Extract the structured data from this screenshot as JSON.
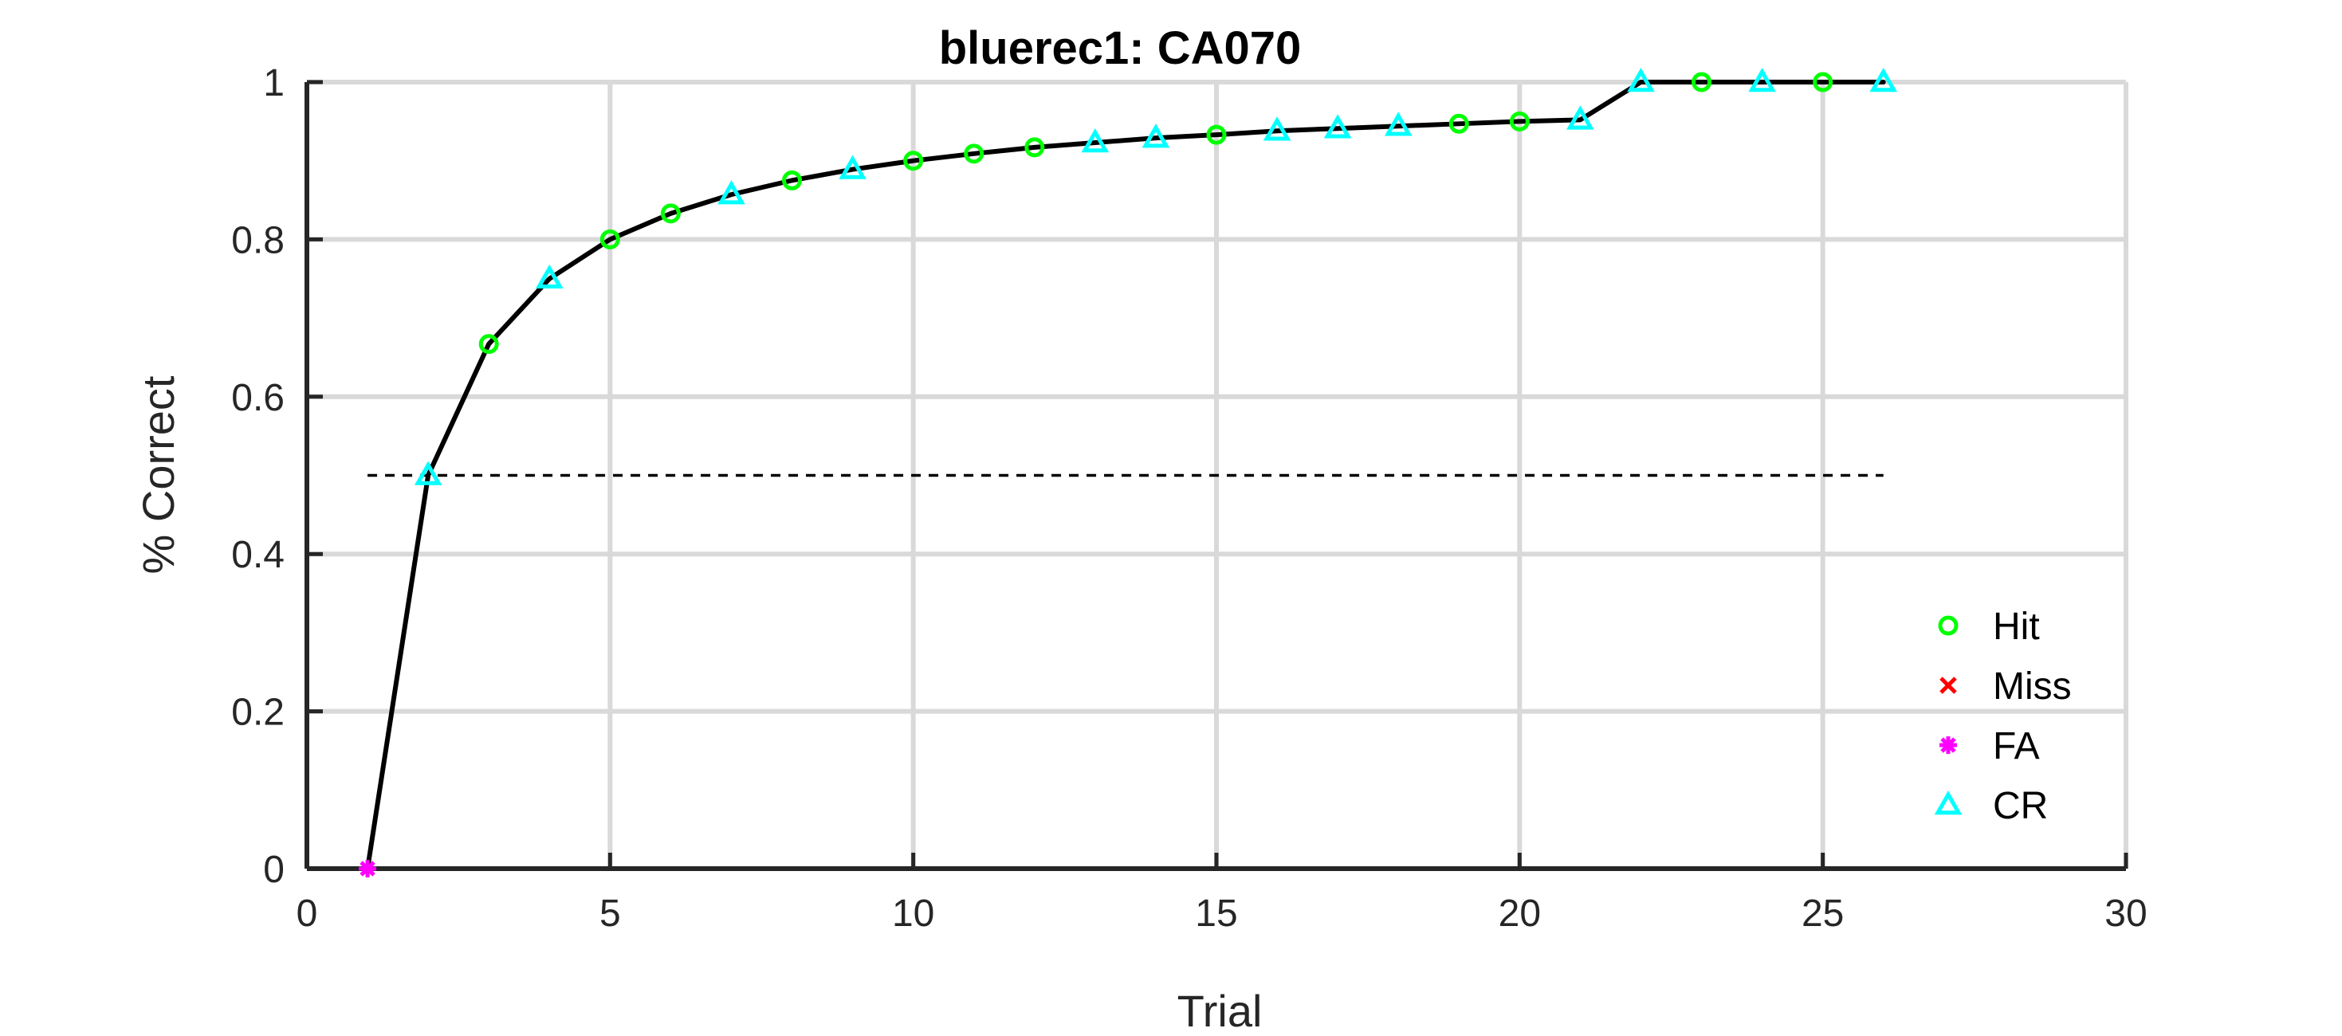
{
  "chart_data": {
    "type": "line",
    "title": "bluerec1: CA070",
    "xlabel": "Trial",
    "ylabel": "% Correct",
    "xlim": [
      0,
      30
    ],
    "ylim": [
      0,
      1
    ],
    "x_ticks": [
      0,
      5,
      10,
      15,
      20,
      25,
      30
    ],
    "y_ticks": [
      0,
      0.2,
      0.4,
      0.6,
      0.8,
      1
    ],
    "x_tick_labels": [
      "0",
      "5",
      "10",
      "15",
      "20",
      "25",
      "30"
    ],
    "y_tick_labels": [
      "0",
      "0.2",
      "0.4",
      "0.6",
      "0.8",
      "1"
    ],
    "grid": true,
    "legend_position": "bottom-right",
    "line_color": "#000000",
    "chance_line": {
      "y": 0.5,
      "x_range": [
        1,
        26
      ],
      "style": "dashed",
      "color": "#000000"
    },
    "points": [
      {
        "trial": 1,
        "value": 0,
        "outcome": "FA"
      },
      {
        "trial": 2,
        "value": 0.5,
        "outcome": "CR"
      },
      {
        "trial": 3,
        "value": 0.667,
        "outcome": "Hit"
      },
      {
        "trial": 4,
        "value": 0.75,
        "outcome": "CR"
      },
      {
        "trial": 5,
        "value": 0.8,
        "outcome": "Hit"
      },
      {
        "trial": 6,
        "value": 0.833,
        "outcome": "Hit"
      },
      {
        "trial": 7,
        "value": 0.857,
        "outcome": "CR"
      },
      {
        "trial": 8,
        "value": 0.875,
        "outcome": "Hit"
      },
      {
        "trial": 9,
        "value": 0.889,
        "outcome": "CR"
      },
      {
        "trial": 10,
        "value": 0.9,
        "outcome": "Hit"
      },
      {
        "trial": 11,
        "value": 0.909,
        "outcome": "Hit"
      },
      {
        "trial": 12,
        "value": 0.917,
        "outcome": "Hit"
      },
      {
        "trial": 13,
        "value": 0.923,
        "outcome": "CR"
      },
      {
        "trial": 14,
        "value": 0.929,
        "outcome": "CR"
      },
      {
        "trial": 15,
        "value": 0.933,
        "outcome": "Hit"
      },
      {
        "trial": 16,
        "value": 0.938,
        "outcome": "CR"
      },
      {
        "trial": 17,
        "value": 0.941,
        "outcome": "CR"
      },
      {
        "trial": 18,
        "value": 0.944,
        "outcome": "CR"
      },
      {
        "trial": 19,
        "value": 0.947,
        "outcome": "Hit"
      },
      {
        "trial": 20,
        "value": 0.95,
        "outcome": "Hit"
      },
      {
        "trial": 21,
        "value": 0.952,
        "outcome": "CR"
      },
      {
        "trial": 22,
        "value": 1,
        "outcome": "CR"
      },
      {
        "trial": 23,
        "value": 1,
        "outcome": "Hit"
      },
      {
        "trial": 24,
        "value": 1,
        "outcome": "CR"
      },
      {
        "trial": 25,
        "value": 1,
        "outcome": "Hit"
      },
      {
        "trial": 26,
        "value": 1,
        "outcome": "CR"
      }
    ],
    "legend": [
      {
        "label": "Hit",
        "marker": "circle",
        "color": "#00ff00"
      },
      {
        "label": "Miss",
        "marker": "x",
        "color": "#ff0000"
      },
      {
        "label": "FA",
        "marker": "asterisk",
        "color": "#ff00ff"
      },
      {
        "label": "CR",
        "marker": "triangle",
        "color": "#00ffff"
      }
    ]
  }
}
